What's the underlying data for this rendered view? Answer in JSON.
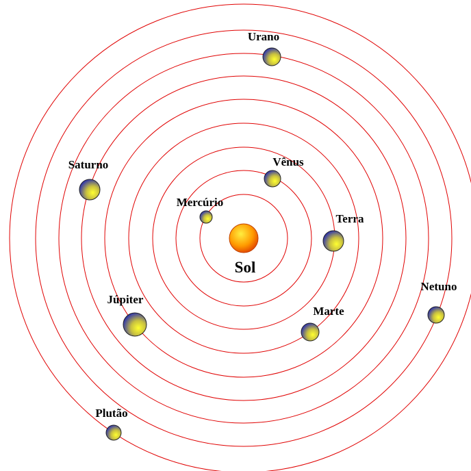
{
  "sun": {
    "label": "Sol"
  },
  "planets": [
    {
      "label": "Mercúrio"
    },
    {
      "label": "Vênus"
    },
    {
      "label": "Terra"
    },
    {
      "label": "Marte"
    },
    {
      "label": "Júpiter"
    },
    {
      "label": "Saturno"
    },
    {
      "label": "Urano"
    },
    {
      "label": "Netuno"
    },
    {
      "label": "Plutão"
    }
  ]
}
